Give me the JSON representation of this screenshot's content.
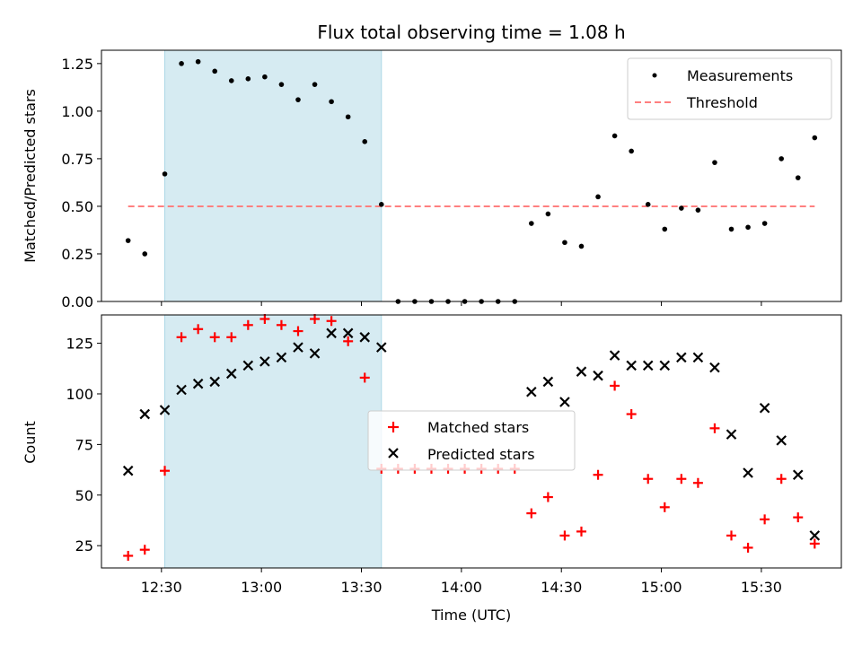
{
  "chart_data": [
    {
      "type": "scatter",
      "title": "Flux total observing time = 1.08 h",
      "ylabel": "Matched/Predicted stars",
      "ylim": [
        0,
        1.32
      ],
      "yticks": [
        0.0,
        0.25,
        0.5,
        0.75,
        1.0,
        1.25
      ],
      "ytick_labels": [
        "0.00",
        "0.25",
        "0.50",
        "0.75",
        "1.00",
        "1.25"
      ],
      "legend_position": "top-right",
      "shaded_span": [
        "12:31",
        "13:36"
      ],
      "series": [
        {
          "name": "Measurements",
          "color": "#000000",
          "marker": "dot",
          "x": [
            "12:20",
            "12:25",
            "12:31",
            "12:36",
            "12:41",
            "12:46",
            "12:51",
            "12:56",
            "13:01",
            "13:06",
            "13:11",
            "13:16",
            "13:21",
            "13:26",
            "13:31",
            "13:36",
            "13:41",
            "13:46",
            "13:51",
            "13:56",
            "14:01",
            "14:06",
            "14:11",
            "14:16",
            "14:21",
            "14:26",
            "14:31",
            "14:36",
            "14:41",
            "14:46",
            "14:51",
            "14:56",
            "15:01",
            "15:06",
            "15:11",
            "15:16",
            "15:21",
            "15:26",
            "15:31",
            "15:36",
            "15:41",
            "15:46"
          ],
          "y": [
            0.32,
            0.25,
            0.67,
            1.25,
            1.26,
            1.21,
            1.16,
            1.17,
            1.18,
            1.14,
            1.06,
            1.14,
            1.05,
            0.97,
            0.84,
            0.51,
            0.0,
            0.0,
            0.0,
            0.0,
            0.0,
            0.0,
            0.0,
            0.0,
            0.41,
            0.46,
            0.31,
            0.29,
            0.55,
            0.87,
            0.79,
            0.51,
            0.38,
            0.49,
            0.48,
            0.73,
            0.38,
            0.39,
            0.41,
            0.75,
            0.65,
            0.86
          ]
        },
        {
          "name": "Threshold",
          "color": "#ff7f7f",
          "style": "dashed",
          "x": [
            "12:20",
            "15:46"
          ],
          "y": [
            0.5,
            0.5
          ]
        }
      ]
    },
    {
      "type": "scatter",
      "xlabel": "Time (UTC)",
      "ylabel": "Count",
      "ylim": [
        14,
        139
      ],
      "yticks": [
        25,
        50,
        75,
        100,
        125
      ],
      "ytick_labels": [
        "25",
        "50",
        "75",
        "100",
        "125"
      ],
      "x_range": [
        "12:12",
        "15:54"
      ],
      "xticks": [
        "12:30",
        "13:00",
        "13:30",
        "14:00",
        "14:30",
        "15:00",
        "15:30"
      ],
      "legend_position": "center",
      "shaded_span": [
        "12:31",
        "13:36"
      ],
      "series": [
        {
          "name": "Matched stars",
          "color": "#ff0000",
          "marker": "plus",
          "x": [
            "12:20",
            "12:25",
            "12:31",
            "12:36",
            "12:41",
            "12:46",
            "12:51",
            "12:56",
            "13:01",
            "13:06",
            "13:11",
            "13:16",
            "13:21",
            "13:26",
            "13:31",
            "13:36",
            "13:41",
            "13:46",
            "13:51",
            "13:56",
            "14:01",
            "14:06",
            "14:11",
            "14:16",
            "14:21",
            "14:26",
            "14:31",
            "14:36",
            "14:41",
            "14:46",
            "14:51",
            "14:56",
            "15:01",
            "15:06",
            "15:11",
            "15:16",
            "15:21",
            "15:26",
            "15:31",
            "15:36",
            "15:41",
            "15:46"
          ],
          "y": [
            20,
            23,
            62,
            128,
            132,
            128,
            128,
            134,
            137,
            134,
            131,
            137,
            136,
            126,
            108,
            63,
            63,
            63,
            63,
            63,
            63,
            63,
            63,
            63,
            41,
            49,
            30,
            32,
            60,
            104,
            90,
            58,
            44,
            58,
            56,
            83,
            30,
            24,
            38,
            58,
            39,
            26
          ]
        },
        {
          "name": "Predicted stars",
          "color": "#000000",
          "marker": "x",
          "x": [
            "12:20",
            "12:25",
            "12:31",
            "12:36",
            "12:41",
            "12:46",
            "12:51",
            "12:56",
            "13:01",
            "13:06",
            "13:11",
            "13:16",
            "13:21",
            "13:26",
            "13:31",
            "13:36",
            "14:21",
            "14:26",
            "14:31",
            "14:36",
            "14:41",
            "14:46",
            "14:51",
            "14:56",
            "15:01",
            "15:06",
            "15:11",
            "15:16",
            "15:21",
            "15:26",
            "15:31",
            "15:36",
            "15:41",
            "15:46"
          ],
          "y": [
            62,
            90,
            92,
            102,
            105,
            106,
            110,
            114,
            116,
            118,
            123,
            120,
            130,
            130,
            128,
            123,
            101,
            106,
            96,
            111,
            109,
            119,
            114,
            114,
            114,
            118,
            118,
            113,
            80,
            61,
            93,
            77,
            60,
            30
          ]
        }
      ]
    }
  ]
}
